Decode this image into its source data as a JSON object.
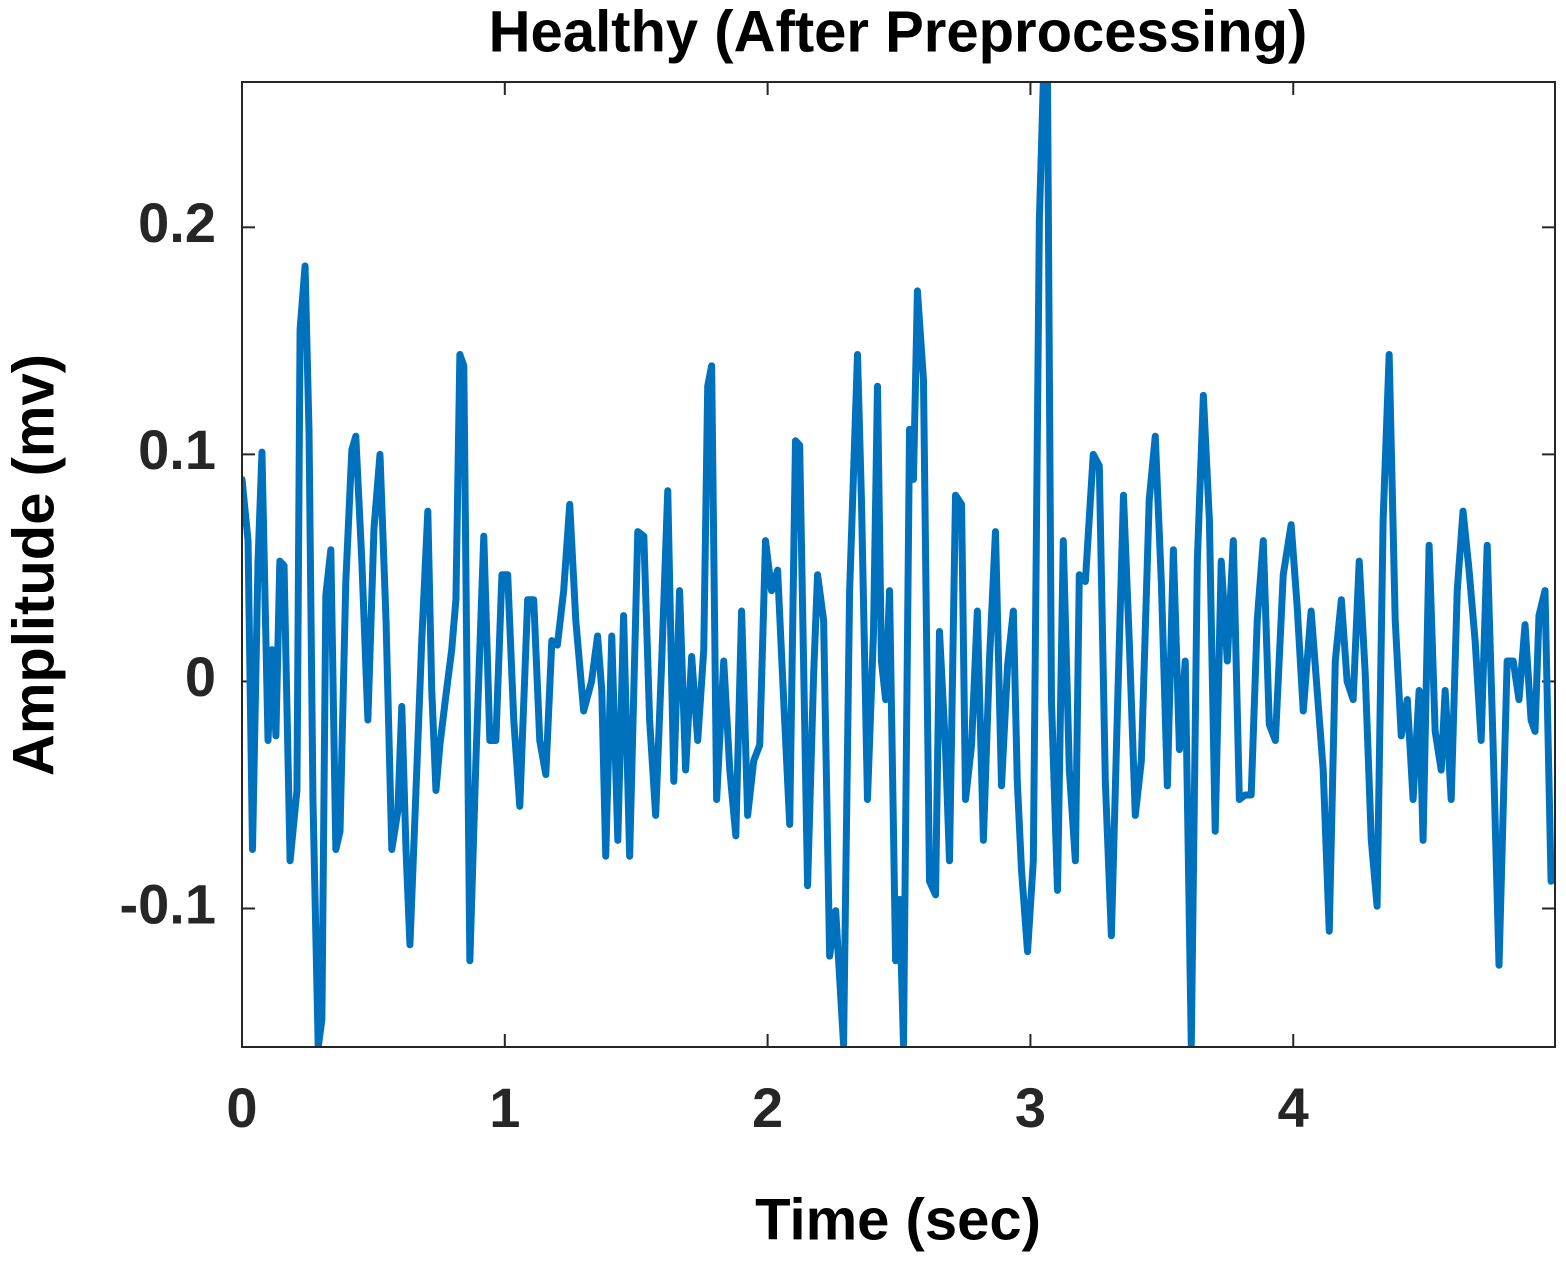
{
  "chart_data": {
    "type": "line",
    "title": "Healthy (After Preprocessing)",
    "x_label": "Time (sec)",
    "y_label": "Amplitude (mv)",
    "color": "#0072BD",
    "xlim": [
      0,
      4.996
    ],
    "ylim": [
      -0.161,
      0.264
    ],
    "xticks": [
      0,
      1,
      2,
      3,
      4
    ],
    "yticks": [
      -0.1,
      0,
      0.1,
      0.2
    ],
    "grid": false,
    "x": [
      0,
      0.023,
      0.04,
      0.061,
      0.076,
      0.099,
      0.114,
      0.129,
      0.144,
      0.16,
      0.183,
      0.209,
      0.221,
      0.24,
      0.255,
      0.27,
      0.29,
      0.304,
      0.319,
      0.338,
      0.357,
      0.373,
      0.395,
      0.418,
      0.433,
      0.456,
      0.479,
      0.502,
      0.525,
      0.548,
      0.57,
      0.593,
      0.608,
      0.624,
      0.639,
      0.662,
      0.684,
      0.707,
      0.722,
      0.738,
      0.753,
      0.776,
      0.798,
      0.814,
      0.829,
      0.844,
      0.867,
      0.89,
      0.92,
      0.943,
      0.966,
      0.989,
      1.011,
      1.034,
      1.057,
      1.087,
      1.11,
      1.133,
      1.156,
      1.179,
      1.2,
      1.224,
      1.247,
      1.27,
      1.3,
      1.33,
      1.353,
      1.369,
      1.384,
      1.407,
      1.43,
      1.452,
      1.475,
      1.506,
      1.529,
      1.551,
      1.574,
      1.597,
      1.62,
      1.643,
      1.665,
      1.688,
      1.711,
      1.734,
      1.757,
      1.772,
      1.787,
      1.806,
      1.833,
      1.856,
      1.879,
      1.901,
      1.924,
      1.947,
      1.97,
      1.992,
      2.015,
      2.038,
      2.061,
      2.084,
      2.106,
      2.122,
      2.152,
      2.175,
      2.19,
      2.213,
      2.236,
      2.259,
      2.289,
      2.312,
      2.342,
      2.357,
      2.38,
      2.403,
      2.418,
      2.433,
      2.449,
      2.464,
      2.487,
      2.502,
      2.517,
      2.54,
      2.555,
      2.57,
      2.593,
      2.616,
      2.639,
      2.654,
      2.677,
      2.692,
      2.715,
      2.738,
      2.753,
      2.776,
      2.798,
      2.821,
      2.844,
      2.867,
      2.89,
      2.913,
      2.935,
      2.95,
      2.966,
      2.989,
      3.011,
      3.034,
      3.049,
      3.065,
      3.08,
      3.103,
      3.125,
      3.148,
      3.171,
      3.186,
      3.209,
      3.239,
      3.262,
      3.285,
      3.308,
      3.331,
      3.354,
      3.376,
      3.399,
      3.422,
      3.452,
      3.475,
      3.498,
      3.521,
      3.544,
      3.567,
      3.589,
      3.612,
      3.635,
      3.658,
      3.681,
      3.703,
      3.726,
      3.749,
      3.772,
      3.795,
      3.817,
      3.84,
      3.863,
      3.886,
      3.909,
      3.932,
      3.962,
      3.992,
      4.015,
      4.038,
      4.068,
      4.091,
      4.114,
      4.137,
      4.16,
      4.183,
      4.205,
      4.228,
      4.251,
      4.274,
      4.297,
      4.319,
      4.342,
      4.365,
      4.388,
      4.411,
      4.434,
      4.456,
      4.479,
      4.494,
      4.517,
      4.54,
      4.563,
      4.578,
      4.601,
      4.624,
      4.646,
      4.669,
      4.692,
      4.715,
      4.738,
      4.76,
      4.783,
      4.814,
      4.837,
      4.859,
      4.882,
      4.905,
      4.92,
      4.935,
      4.958,
      4.981,
      4.996
    ],
    "values": [
      0.089,
      0.062,
      -0.074,
      0.053,
      0.101,
      -0.026,
      0.014,
      -0.024,
      0.053,
      0.051,
      -0.079,
      -0.048,
      0.155,
      0.183,
      0.11,
      -0.052,
      -0.161,
      -0.149,
      0.038,
      0.058,
      -0.074,
      -0.066,
      0.044,
      0.102,
      0.108,
      0.053,
      -0.017,
      0.067,
      0.1,
      0.027,
      -0.074,
      -0.057,
      -0.011,
      -0.074,
      -0.116,
      -0.048,
      0.018,
      0.075,
      -0.004,
      -0.048,
      -0.028,
      -0.006,
      0.014,
      0.036,
      0.144,
      0.139,
      -0.123,
      -0.035,
      0.064,
      -0.026,
      -0.026,
      0.047,
      0.047,
      -0.017,
      -0.055,
      0.036,
      0.036,
      -0.026,
      -0.041,
      0.018,
      0.016,
      0.04,
      0.078,
      0.027,
      -0.013,
      0.0,
      0.02,
      -0.004,
      -0.077,
      0.02,
      -0.07,
      0.029,
      -0.077,
      0.066,
      0.064,
      -0.017,
      -0.059,
      0.009,
      0.084,
      -0.044,
      0.04,
      -0.039,
      0.011,
      -0.026,
      0.014,
      0.13,
      0.139,
      -0.052,
      0.009,
      -0.039,
      -0.068,
      0.031,
      -0.059,
      -0.035,
      -0.028,
      0.062,
      0.04,
      0.049,
      -0.008,
      -0.063,
      0.106,
      0.104,
      -0.09,
      0.003,
      0.047,
      0.027,
      -0.121,
      -0.101,
      -0.16,
      0.04,
      0.144,
      0.08,
      -0.052,
      0.022,
      0.13,
      0.009,
      -0.008,
      0.04,
      -0.123,
      -0.096,
      -0.16,
      0.111,
      0.089,
      0.172,
      0.133,
      -0.088,
      -0.094,
      0.022,
      -0.03,
      -0.079,
      0.082,
      0.078,
      -0.052,
      -0.028,
      0.031,
      -0.07,
      0.009,
      0.066,
      -0.046,
      0.007,
      0.031,
      -0.044,
      -0.083,
      -0.119,
      -0.079,
      0.203,
      0.264,
      0.264,
      -0.008,
      -0.092,
      0.062,
      -0.039,
      -0.079,
      0.047,
      0.044,
      0.1,
      0.095,
      -0.044,
      -0.112,
      -0.013,
      0.082,
      0.018,
      -0.059,
      -0.035,
      0.08,
      0.108,
      0.044,
      -0.046,
      0.058,
      -0.03,
      0.009,
      -0.16,
      0.053,
      0.126,
      0.071,
      -0.066,
      0.053,
      0.009,
      0.062,
      -0.052,
      -0.05,
      -0.05,
      0.027,
      0.062,
      -0.019,
      -0.026,
      0.047,
      0.069,
      0.033,
      -0.013,
      0.031,
      -0.004,
      -0.039,
      -0.11,
      0.009,
      0.036,
      0.0,
      -0.008,
      0.053,
      0.003,
      -0.07,
      -0.099,
      0.071,
      0.144,
      0.027,
      -0.024,
      -0.008,
      -0.052,
      -0.004,
      -0.07,
      0.06,
      -0.022,
      -0.039,
      -0.004,
      -0.052,
      0.04,
      0.075,
      0.049,
      0.018,
      -0.026,
      0.06,
      -0.026,
      -0.125,
      0.009,
      0.009,
      -0.008,
      0.025,
      -0.017,
      -0.022,
      0.029,
      0.04,
      -0.088,
      -0.079
    ]
  }
}
